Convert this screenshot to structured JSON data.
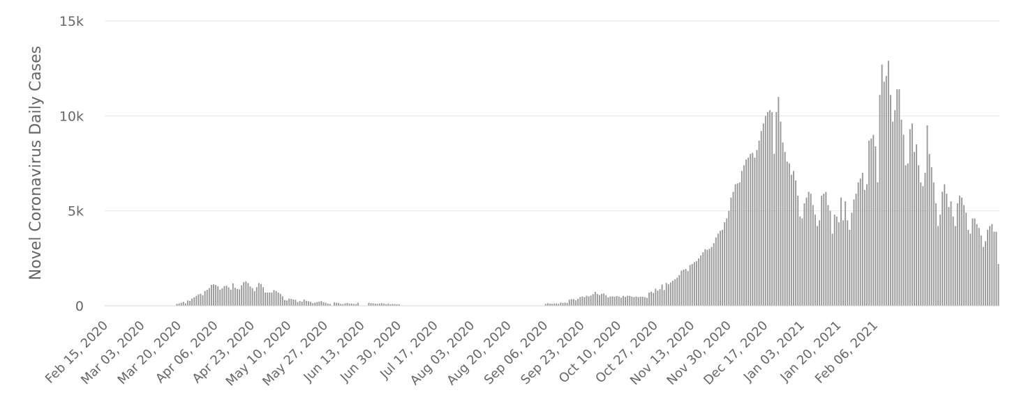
{
  "chart_data": {
    "type": "bar",
    "title": "",
    "xlabel": "",
    "ylabel": "Novel Coronavirus Daily Cases",
    "ylim": [
      0,
      15000
    ],
    "yticks": [
      0,
      5000,
      10000,
      15000
    ],
    "ytick_labels": [
      "0",
      "5k",
      "10k",
      "15k"
    ],
    "xtick_labels": [
      "Feb 15, 2020",
      "Mar 03, 2020",
      "Mar 20, 2020",
      "Apr 06, 2020",
      "Apr 23, 2020",
      "May 10, 2020",
      "May 27, 2020",
      "Jun 13, 2020",
      "Jun 30, 2020",
      "Jul 17, 2020",
      "Aug 03, 2020",
      "Aug 20, 2020",
      "Sep 06, 2020",
      "Sep 23, 2020",
      "Oct 10, 2020",
      "Oct 27, 2020",
      "Nov 13, 2020",
      "Nov 30, 2020",
      "Dec 17, 2020",
      "Jan 03, 2021",
      "Jan 20, 2021",
      "Feb 06, 2021"
    ],
    "grid": true,
    "legend": "none",
    "color": "#999999",
    "series": [
      {
        "x_start": "Feb 15, 2020",
        "values": [
          0,
          0,
          0,
          0,
          0,
          0,
          0,
          0,
          0,
          0,
          0,
          0,
          0,
          0,
          0,
          0,
          0,
          0,
          0,
          0,
          0,
          0,
          0,
          0,
          0,
          0,
          0,
          0,
          0,
          0,
          0,
          0,
          0,
          100,
          130,
          160,
          210,
          130,
          280,
          260,
          380,
          440,
          520,
          600,
          640,
          560,
          780,
          840,
          930,
          1100,
          1130,
          1100,
          1030,
          850,
          920,
          1040,
          1060,
          970,
          850,
          1180,
          950,
          880,
          860,
          1080,
          1240,
          1290,
          1200,
          1020,
          930,
          780,
          980,
          1200,
          1150,
          980,
          700,
          700,
          700,
          700,
          830,
          780,
          700,
          630,
          500,
          300,
          280,
          380,
          360,
          330,
          320,
          200,
          250,
          220,
          330,
          260,
          240,
          210,
          140,
          170,
          200,
          220,
          250,
          190,
          160,
          120,
          100,
          0,
          180,
          160,
          150,
          100,
          90,
          130,
          150,
          110,
          120,
          100,
          90,
          160,
          0,
          0,
          0,
          0,
          160,
          140,
          130,
          110,
          100,
          120,
          140,
          110,
          90,
          120,
          80,
          100,
          90,
          80,
          80,
          0,
          0,
          0,
          0,
          0,
          0,
          0,
          0,
          0,
          0,
          0,
          0,
          0,
          0,
          0,
          0,
          0,
          0,
          0,
          0,
          0,
          0,
          0,
          0,
          0,
          0,
          0,
          0,
          0,
          0,
          0,
          0,
          0,
          0,
          0,
          0,
          0,
          0,
          0,
          0,
          0,
          0,
          0,
          0,
          0,
          0,
          0,
          0,
          0,
          0,
          0,
          0,
          0,
          0,
          0,
          0,
          0,
          0,
          0,
          0,
          0,
          0,
          0,
          0,
          0,
          0,
          0,
          100,
          140,
          110,
          100,
          120,
          130,
          100,
          170,
          150,
          170,
          150,
          320,
          350,
          350,
          290,
          370,
          460,
          490,
          460,
          530,
          490,
          540,
          610,
          740,
          620,
          570,
          630,
          650,
          560,
          450,
          490,
          500,
          480,
          510,
          490,
          430,
          520,
          470,
          520,
          520,
          480,
          460,
          490,
          460,
          480,
          480,
          460,
          420,
          700,
          740,
          680,
          900,
          800,
          880,
          1120,
          830,
          1200,
          1130,
          1230,
          1320,
          1400,
          1480,
          1620,
          1850,
          1900,
          1940,
          1830,
          2150,
          2200,
          2300,
          2350,
          2500,
          2650,
          2820,
          2980,
          2950,
          3000,
          3100,
          3300,
          3600,
          3800,
          3950,
          4000,
          4400,
          4600,
          5000,
          5700,
          6000,
          6400,
          6450,
          6500,
          7100,
          7400,
          7700,
          7800,
          8000,
          8050,
          7800,
          8200,
          8700,
          9200,
          9600,
          10000,
          10200,
          10300,
          10200,
          8000,
          10200,
          11000,
          9700,
          8600,
          8100,
          7600,
          7500,
          6900,
          7100,
          6600,
          5800,
          4700,
          4600,
          5400,
          5700,
          6000,
          5900,
          5300,
          4800,
          4200,
          4500,
          5800,
          5900,
          6000,
          5300,
          5000,
          3800,
          4800,
          4700,
          4400,
          5700,
          4500,
          5500,
          4500,
          4000,
          4900,
          5600,
          5900,
          6500,
          6700,
          7000,
          6100,
          6400,
          8700,
          8800,
          9000,
          8400,
          6500,
          11100,
          12700,
          11800,
          12100,
          12900,
          11100,
          9700,
          10300,
          11400,
          11400,
          9800,
          9000,
          7400,
          7500,
          9300,
          9600,
          8100,
          8500,
          7400,
          6500,
          6300,
          7000,
          9500,
          8000,
          7300,
          6500,
          5400,
          4200,
          4800,
          6000,
          6400,
          5900,
          5200,
          5500,
          4700,
          4200,
          5400,
          5800,
          5700,
          5300,
          4900,
          4000,
          3800,
          4600,
          4600,
          4300,
          4100,
          3700,
          3100,
          3400,
          4000,
          4200,
          4300,
          3900,
          3900,
          2200
        ]
      }
    ]
  }
}
